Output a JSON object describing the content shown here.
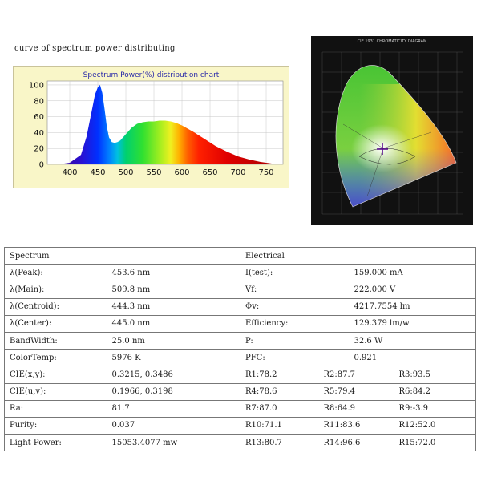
{
  "caption": "curve of spectrum power distributing",
  "spectrum_chart": {
    "title": "Spectrum Power(%) distribution chart",
    "chart_data": {
      "type": "area",
      "x": [
        380,
        400,
        420,
        430,
        440,
        445,
        450,
        454,
        458,
        462,
        466,
        470,
        475,
        480,
        485,
        490,
        500,
        510,
        520,
        530,
        540,
        550,
        560,
        570,
        580,
        590,
        600,
        620,
        640,
        660,
        680,
        700,
        720,
        740,
        760,
        780
      ],
      "y": [
        0,
        2,
        12,
        35,
        70,
        88,
        97,
        100,
        90,
        70,
        48,
        34,
        28,
        27,
        28,
        30,
        38,
        46,
        51,
        53,
        54,
        54,
        55,
        55,
        54,
        52,
        49,
        41,
        32,
        23,
        16,
        10,
        6,
        3,
        1,
        0
      ],
      "xlim": [
        360,
        780
      ],
      "ylim": [
        0,
        105
      ],
      "xticks": [
        "400",
        "450",
        "500",
        "550",
        "600",
        "650",
        "700",
        "750"
      ],
      "yticks": [
        "0",
        "20",
        "40",
        "60",
        "80",
        "100"
      ],
      "grid": true,
      "fill": "visible-spectrum"
    }
  },
  "cie_diagram": {
    "title": "CIE 1931 CHROMATICITY DIAGRAM"
  },
  "table": {
    "headers": [
      "Spectrum",
      "Electrical"
    ],
    "rows": [
      {
        "label": "λ(Peak):",
        "value": "453.6 nm",
        "elabel": "I(test):",
        "evalue": "159.000 mA"
      },
      {
        "label": "λ(Main):",
        "value": "509.8 nm",
        "elabel": "Vf:",
        "evalue": "222.000 V"
      },
      {
        "label": "λ(Centroid):",
        "value": "444.3 nm",
        "elabel": "Φv:",
        "evalue": "4217.7554 lm"
      },
      {
        "label": "λ(Center):",
        "value": "445.0 nm",
        "elabel": "Efficiency:",
        "evalue": "129.379 lm/w"
      },
      {
        "label": "BandWidth:",
        "value": "25.0 nm",
        "elabel": "P:",
        "evalue": "32.6 W"
      },
      {
        "label": "ColorTemp:",
        "value": "5976 K",
        "elabel": "PFC:",
        "evalue": "0.921"
      }
    ],
    "r_rows": [
      {
        "label": "CIE(x,y):",
        "value": "0.3215, 0.3486",
        "r": [
          "R1:78.2",
          "R2:87.7",
          "R3:93.5"
        ]
      },
      {
        "label": "CIE(u,v):",
        "value": "0.1966, 0.3198",
        "r": [
          "R4:78.6",
          "R5:79.4",
          "R6:84.2"
        ]
      },
      {
        "label": "Ra:",
        "value": "81.7",
        "r": [
          "R7:87.0",
          "R8:64.9",
          "R9:-3.9"
        ]
      },
      {
        "label": "Purity:",
        "value": "0.037",
        "r": [
          "R10:71.1",
          "R11:83.6",
          "R12:52.0"
        ]
      },
      {
        "label": "Light Power:",
        "value": "15053.4077 mw",
        "r": [
          "R13:80.7",
          "R14:96.6",
          "R15:72.0"
        ]
      }
    ]
  }
}
